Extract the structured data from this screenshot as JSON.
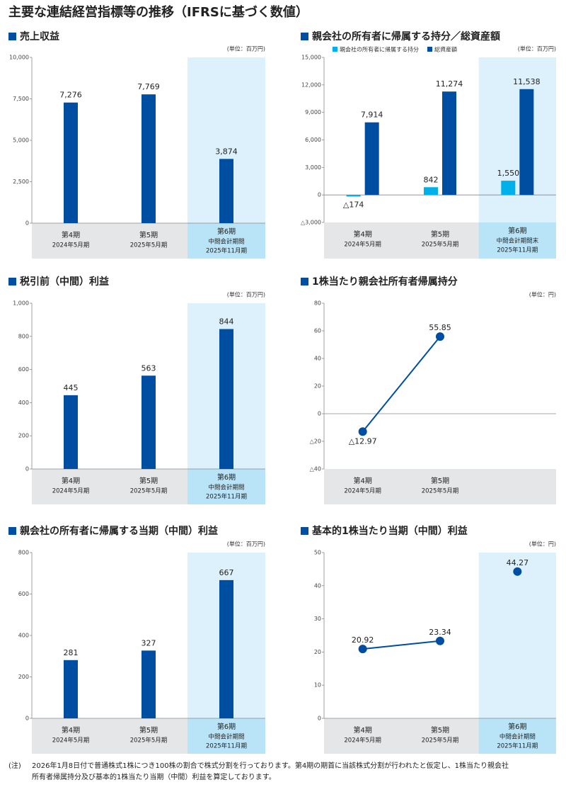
{
  "title": "主要な連結経営指標等の推移（IFRSに基づく数値）",
  "note_label": "(注)",
  "notes": [
    "2026年1月8日付で普通株式1株につき100株の割合で株式分割を行っております。第4期の期首に当該株式分割が行われたと仮定し、1株当たり親会社",
    "所有者帰属持分及び基本的1株当たり当期（中間）利益を算定しております。"
  ],
  "chart_data": [
    {
      "type": "bar",
      "title": "売上収益",
      "unit": "(単位：百万円)",
      "categories": [
        [
          "第4期",
          "2024年5月期"
        ],
        [
          "第5期",
          "2025年5月期"
        ],
        [
          "第6期",
          "中間会計期間",
          "2025年11月期"
        ]
      ],
      "values": [
        7276,
        7769,
        3874
      ],
      "value_labels": [
        "7,276",
        "7,769",
        "3,874"
      ],
      "color": "#004ea2",
      "ylim": [
        0,
        10000
      ],
      "yticks": [
        0,
        {
          "value": 2500,
          "label": "2,500"
        },
        {
          "value": 5000,
          "label": "5,000"
        },
        {
          "value": 7500,
          "label": "7,500"
        },
        {
          "value": 10000,
          "label": "10,000"
        }
      ],
      "highlight_category": 2
    },
    {
      "type": "bar",
      "title": "親会社の所有者に帰属する持分／総資産額",
      "unit": "(単位：百万円)",
      "categories": [
        [
          "第4期",
          "2024年5月期"
        ],
        [
          "第5期",
          "2025年5月期"
        ],
        [
          "第6期",
          "中間会計期間末",
          "2025年11月期"
        ]
      ],
      "series": [
        {
          "name": "親会社の所有者に帰属する持分",
          "color": "#00b0e8",
          "values": [
            -174,
            842,
            1550
          ],
          "value_labels": [
            "△174",
            "842",
            "1,550"
          ]
        },
        {
          "name": "総資産額",
          "color": "#004ea2",
          "values": [
            7914,
            11274,
            11538
          ],
          "value_labels": [
            "7,914",
            "11,274",
            "11,538"
          ]
        }
      ],
      "ylim": [
        -3000,
        15000
      ],
      "yticks": [
        {
          "value": -3000,
          "label": "△3,000"
        },
        0,
        {
          "value": 3000,
          "label": "3,000"
        },
        {
          "value": 6000,
          "label": "6,000"
        },
        {
          "value": 9000,
          "label": "9,000"
        },
        {
          "value": 12000,
          "label": "12,000"
        },
        {
          "value": 15000,
          "label": "15,000"
        }
      ],
      "legend": "top-left",
      "highlight_category": 2
    },
    {
      "type": "bar",
      "title": "税引前（中間）利益",
      "unit": "(単位：百万円)",
      "categories": [
        [
          "第4期",
          "2024年5月期"
        ],
        [
          "第5期",
          "2025年5月期"
        ],
        [
          "第6期",
          "中間会計期間",
          "2025年11月期"
        ]
      ],
      "values": [
        445,
        563,
        844
      ],
      "color": "#004ea2",
      "ylim": [
        0,
        1000
      ],
      "yticks": [
        0,
        200,
        400,
        600,
        800,
        {
          "value": 1000,
          "label": "1,000"
        }
      ],
      "highlight_category": 2
    },
    {
      "type": "line",
      "title": "1株当たり親会社所有者帰属持分",
      "unit": "(単位：円)",
      "categories": [
        [
          "第4期",
          "2024年5月期"
        ],
        [
          "第5期",
          "2025年5月期"
        ],
        null
      ],
      "series": [
        {
          "color": "#004ea2",
          "values": [
            -12.97,
            55.85,
            null
          ],
          "value_labels": [
            "△12.97",
            "55.85",
            null
          ]
        }
      ],
      "ylim": [
        -40,
        80
      ],
      "yticks": [
        {
          "value": -40,
          "label": "△40"
        },
        {
          "value": -20,
          "label": "△20"
        },
        0,
        20,
        40,
        60,
        80
      ]
    },
    {
      "type": "bar",
      "title": "親会社の所有者に帰属する当期（中間）利益",
      "unit": "(単位：百万円)",
      "categories": [
        [
          "第4期",
          "2024年5月期"
        ],
        [
          "第5期",
          "2025年5月期"
        ],
        [
          "第6期",
          "中間会計期間",
          "2025年11月期"
        ]
      ],
      "values": [
        281,
        327,
        667
      ],
      "color": "#004ea2",
      "ylim": [
        0,
        800
      ],
      "yticks": [
        0,
        200,
        400,
        600,
        800
      ],
      "highlight_category": 2
    },
    {
      "type": "line",
      "title": "基本的1株当たり当期（中間）利益",
      "unit": "(単位：円)",
      "categories": [
        [
          "第4期",
          "2024年5月期"
        ],
        [
          "第5期",
          "2025年5月期"
        ],
        [
          "第6期",
          "中間会計期間",
          "2025年11月期"
        ]
      ],
      "series": [
        {
          "color": "#004ea2",
          "values": [
            20.92,
            23.34,
            null
          ]
        },
        {
          "color": "#004ea2",
          "values": [
            null,
            null,
            44.27
          ]
        }
      ],
      "ylim": [
        0,
        50
      ],
      "yticks": [
        0,
        10,
        20,
        30,
        40,
        50
      ],
      "highlight_category": 2
    }
  ]
}
